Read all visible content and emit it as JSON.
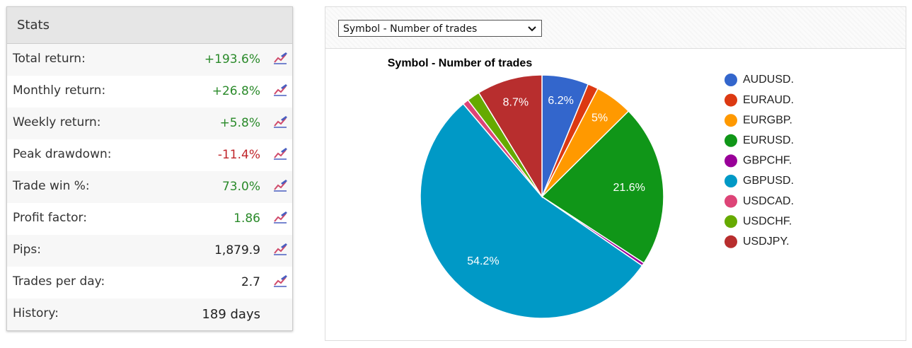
{
  "stats": {
    "title": "Stats",
    "rows": [
      {
        "label": "Total return:",
        "value": "+193.6%"
      },
      {
        "label": "Monthly return:",
        "value": "+26.8%"
      },
      {
        "label": "Weekly return:",
        "value": "+5.8%"
      },
      {
        "label": "Peak drawdown:",
        "value": "-11.4%"
      },
      {
        "label": "Trade win %:",
        "value": "73.0%"
      },
      {
        "label": "Profit factor:",
        "value": "1.86"
      },
      {
        "label": "Pips:",
        "value": "1,879.9"
      },
      {
        "label": "Trades per day:",
        "value": "2.7"
      },
      {
        "label": "History:",
        "value": "189 days"
      }
    ]
  },
  "dropdown": {
    "selected": "Symbol - Number of trades"
  },
  "chart_data": {
    "type": "pie",
    "title": "Symbol - Number of trades",
    "categories": [
      "AUDUSD.",
      "EURAUD.",
      "EURGBP.",
      "EURUSD.",
      "GBPCHF.",
      "GBPUSD.",
      "USDCAD.",
      "USDCHF.",
      "USDJPY."
    ],
    "values": [
      6.2,
      1.4,
      5,
      21.6,
      0.4,
      54.2,
      0.8,
      1.7,
      8.7
    ],
    "value_labels": [
      "6.2%",
      null,
      "5%",
      "21.6%",
      null,
      "54.2%",
      null,
      null,
      "8.7%"
    ],
    "colors": [
      "#3366cc",
      "#dc3912",
      "#ff9900",
      "#109618",
      "#990099",
      "#0099c6",
      "#dd4477",
      "#66aa00",
      "#b82e2e"
    ],
    "legend": "right"
  }
}
